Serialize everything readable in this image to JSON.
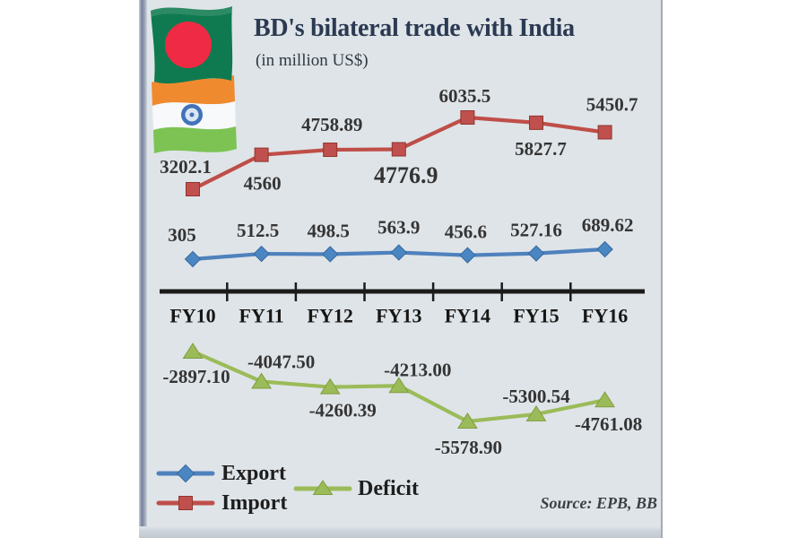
{
  "title": "BD's bilateral trade with India",
  "subtitle": "(in million US$)",
  "source": "Source: EPB, BB",
  "legend": {
    "export": "Export",
    "import": "Import",
    "deficit": "Deficit"
  },
  "icons": [
    "bangladesh-flag-icon",
    "india-flag-icon",
    "export-diamond-icon",
    "import-square-icon",
    "deficit-triangle-icon"
  ],
  "colors": {
    "background": "#dfe4e8",
    "title": "#2b3a52",
    "axis": "#1b1b1b",
    "export": "#4f81bd",
    "import": "#c0504d",
    "deficit": "#9bbb59"
  },
  "chart_data": {
    "type": "line",
    "title": "BD's bilateral trade with India",
    "subtitle": "(in million US$)",
    "categories": [
      "FY10",
      "FY11",
      "FY12",
      "FY13",
      "FY14",
      "FY15",
      "FY16"
    ],
    "series": [
      {
        "name": "Export",
        "marker": "diamond",
        "color": "#4f81bd",
        "values": [
          305,
          512.5,
          498.5,
          563.9,
          456.6,
          527.16,
          689.62
        ],
        "labels": [
          "305",
          "512.5",
          "498.5",
          "563.9",
          "456.6",
          "527.16",
          "689.62"
        ]
      },
      {
        "name": "Import",
        "marker": "square",
        "color": "#c0504d",
        "values": [
          3202.1,
          4560,
          4758.89,
          4776.9,
          6035.5,
          5827.7,
          5450.7
        ],
        "labels": [
          "3202.1",
          "4560",
          "4758.89",
          "4776.9",
          "6035.5",
          "5827.7",
          "5450.7"
        ]
      },
      {
        "name": "Deficit",
        "marker": "triangle",
        "color": "#9bbb59",
        "values": [
          -2897.1,
          -4047.5,
          -4260.39,
          -4213.0,
          -5578.9,
          -5300.54,
          -4761.08
        ],
        "labels": [
          "-2897.10",
          "-4047.50",
          "-4260.39",
          "-4213.00",
          "-5578.90",
          "-5300.54",
          "-4761.08"
        ]
      }
    ],
    "xlabel": "",
    "ylabel": "",
    "grid": false,
    "legend_position": "bottom-left",
    "source": "Source: EPB, BB"
  }
}
